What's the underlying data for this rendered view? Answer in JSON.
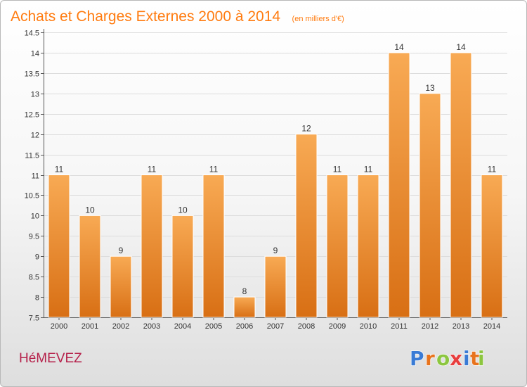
{
  "chart_data": {
    "type": "bar",
    "title": "Achats et Charges Externes 2000 à 2014",
    "subtitle": "(en milliers d'€)",
    "categories": [
      "2000",
      "2001",
      "2002",
      "2003",
      "2004",
      "2005",
      "2006",
      "2007",
      "2008",
      "2009",
      "2010",
      "2011",
      "2012",
      "2013",
      "2014"
    ],
    "values": [
      11,
      10,
      9,
      11,
      10,
      11,
      8,
      9,
      12,
      11,
      11,
      14,
      13,
      14,
      11
    ],
    "ylim": [
      7.5,
      14.5
    ],
    "yticks": [
      7.5,
      8,
      8.5,
      9,
      9.5,
      10,
      10.5,
      11,
      11.5,
      12,
      12.5,
      13,
      13.5,
      14,
      14.5
    ],
    "ytick_labels": [
      "7.5",
      "8",
      "8.5",
      "9",
      "9.5",
      "10",
      "10.5",
      "11",
      "11.5",
      "12",
      "12.5",
      "13",
      "13.5",
      "14",
      "14.5"
    ],
    "grid": true,
    "legend": "none",
    "bar_color": "#f0922e"
  },
  "commune": "HéMEVEZ",
  "brand": {
    "letters": [
      "P",
      "r",
      "o",
      "x",
      "i",
      "t",
      "i"
    ],
    "colors": [
      "#3a7bd5",
      "#e8731c",
      "#8cc63f",
      "#e83e3e",
      "#3a7bd5",
      "#e8731c",
      "#8cc63f"
    ]
  }
}
